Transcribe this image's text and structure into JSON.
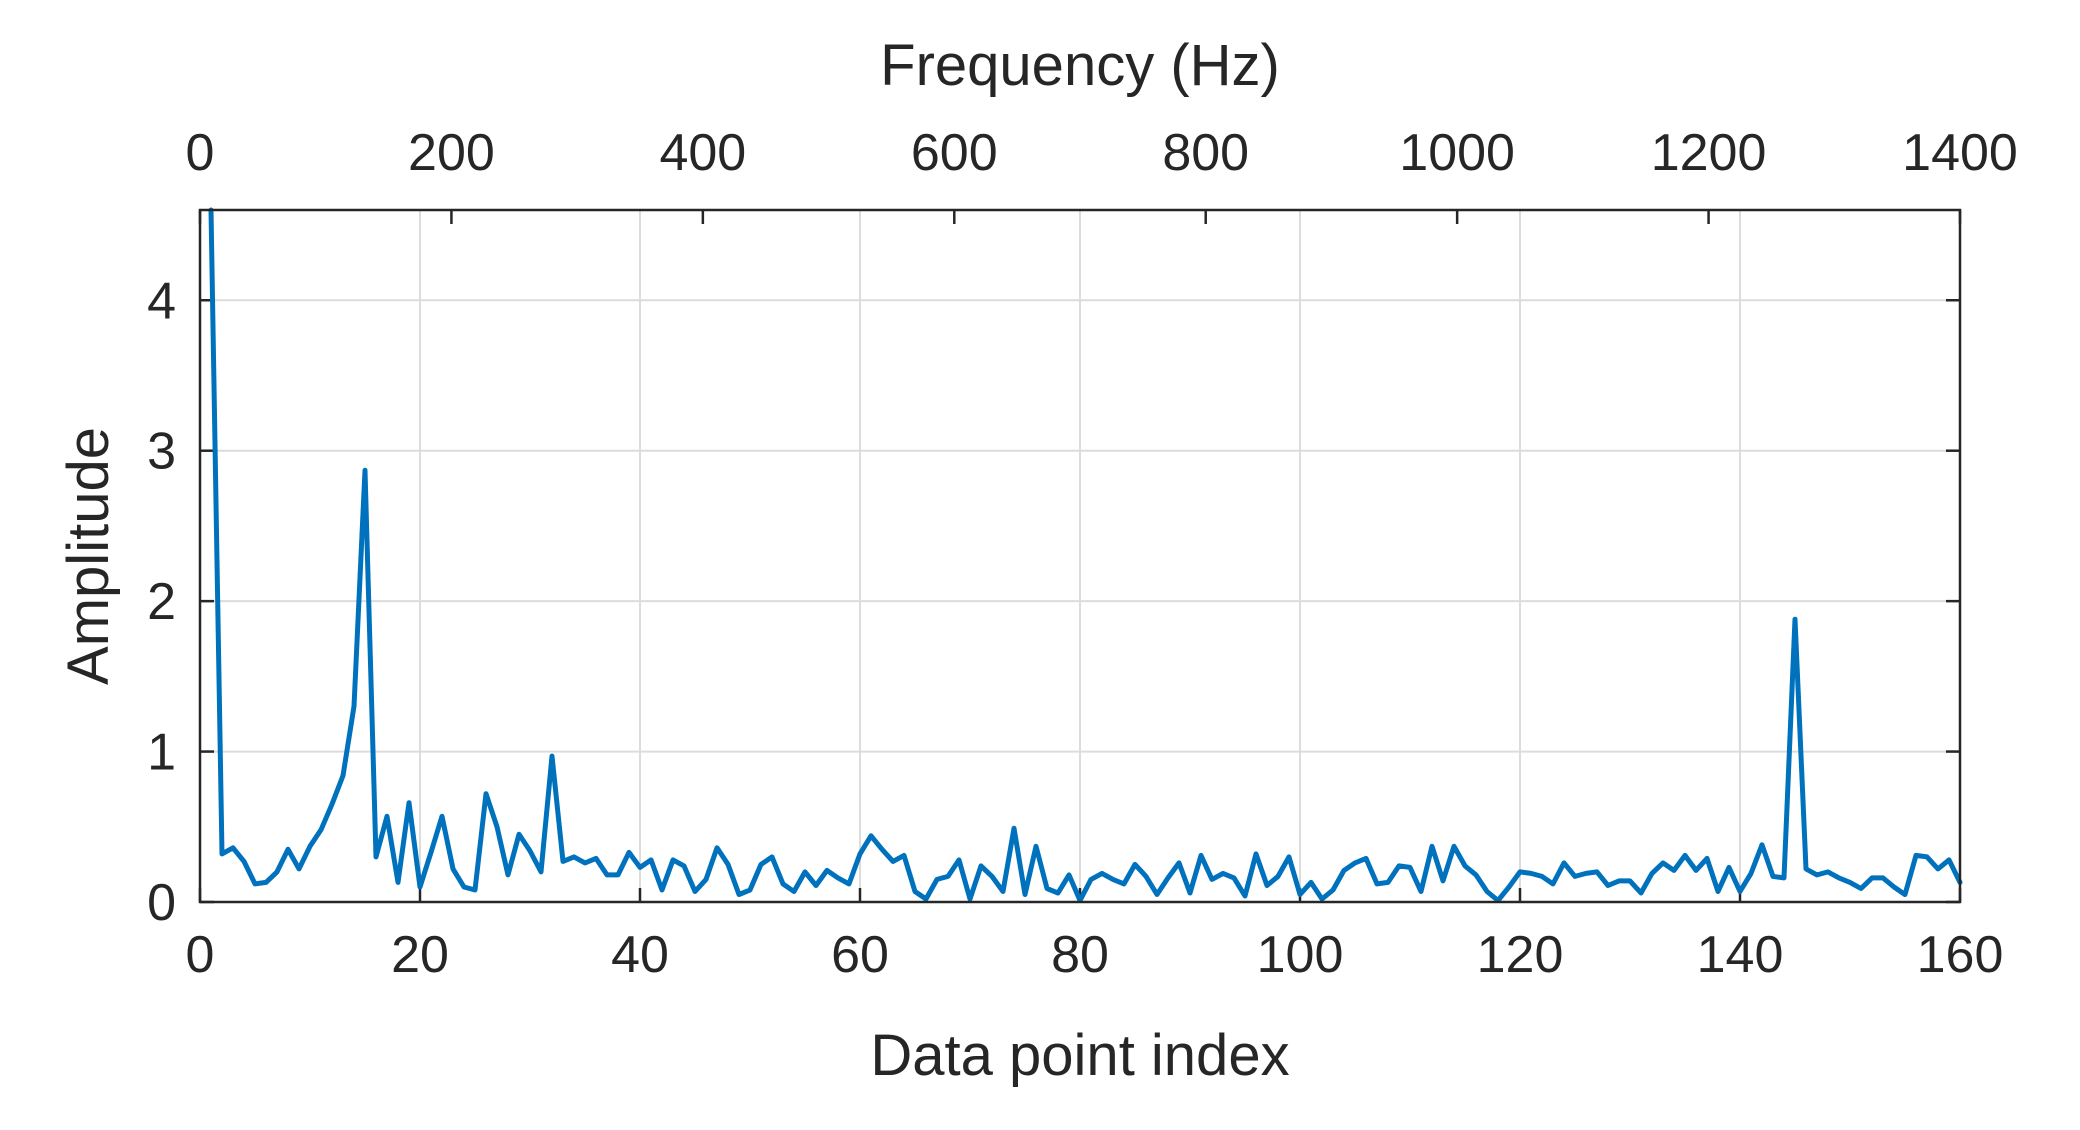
{
  "chart_data": {
    "type": "line",
    "xlabel": "Data point index",
    "x2label": "Frequency (Hz)",
    "ylabel": "Amplitude",
    "xlim": [
      0,
      160
    ],
    "x2lim": [
      0,
      1400
    ],
    "ylim": [
      0,
      4.6
    ],
    "xticks": [
      0,
      20,
      40,
      60,
      80,
      100,
      120,
      140,
      160
    ],
    "x2ticks": [
      0,
      200,
      400,
      600,
      800,
      1000,
      1200,
      1400
    ],
    "yticks": [
      0,
      1,
      2,
      3,
      4
    ],
    "grid": true,
    "line_color": "#0072BD",
    "series": [
      {
        "x": [
          1,
          2,
          3,
          4,
          5,
          6,
          7,
          8,
          9,
          10,
          11,
          12,
          13,
          14,
          15,
          16,
          17,
          18,
          19,
          20,
          21,
          22,
          23,
          24,
          25,
          26,
          27,
          28,
          29,
          30,
          31,
          32,
          33,
          34,
          35,
          36,
          37,
          38,
          39,
          40,
          41,
          42,
          43,
          44,
          45,
          46,
          47,
          48,
          49,
          50,
          51,
          52,
          53,
          54,
          55,
          56,
          57,
          58,
          59,
          60,
          61,
          62,
          63,
          64,
          65,
          66,
          67,
          68,
          69,
          70,
          71,
          72,
          73,
          74,
          75,
          76,
          77,
          78,
          79,
          80,
          81,
          82,
          83,
          84,
          85,
          86,
          87,
          88,
          89,
          90,
          91,
          92,
          93,
          94,
          95,
          96,
          97,
          98,
          99,
          100,
          101,
          102,
          103,
          104,
          105,
          106,
          107,
          108,
          109,
          110,
          111,
          112,
          113,
          114,
          115,
          116,
          117,
          118,
          119,
          120,
          121,
          122,
          123,
          124,
          125,
          126,
          127,
          128,
          129,
          130,
          131,
          132,
          133,
          134,
          135,
          136,
          137,
          138,
          139,
          140,
          141,
          142,
          143,
          144,
          145,
          146,
          147,
          148,
          149,
          150,
          151,
          152,
          153,
          154,
          155,
          156,
          157,
          158,
          159,
          160
        ],
        "y": [
          4.6,
          0.32,
          0.36,
          0.27,
          0.12,
          0.13,
          0.2,
          0.35,
          0.22,
          0.37,
          0.48,
          0.65,
          0.84,
          1.3,
          2.87,
          0.3,
          0.57,
          0.13,
          0.66,
          0.1,
          0.33,
          0.57,
          0.22,
          0.1,
          0.08,
          0.72,
          0.5,
          0.18,
          0.45,
          0.34,
          0.2,
          0.97,
          0.27,
          0.3,
          0.26,
          0.29,
          0.18,
          0.18,
          0.33,
          0.23,
          0.28,
          0.08,
          0.28,
          0.24,
          0.07,
          0.15,
          0.36,
          0.25,
          0.05,
          0.08,
          0.25,
          0.3,
          0.12,
          0.07,
          0.2,
          0.11,
          0.21,
          0.16,
          0.12,
          0.32,
          0.44,
          0.35,
          0.27,
          0.31,
          0.07,
          0.02,
          0.15,
          0.17,
          0.28,
          0.02,
          0.24,
          0.17,
          0.07,
          0.49,
          0.05,
          0.37,
          0.09,
          0.06,
          0.18,
          0.01,
          0.15,
          0.19,
          0.15,
          0.12,
          0.25,
          0.17,
          0.05,
          0.16,
          0.26,
          0.06,
          0.31,
          0.15,
          0.19,
          0.16,
          0.04,
          0.32,
          0.11,
          0.17,
          0.3,
          0.05,
          0.13,
          0.02,
          0.08,
          0.21,
          0.26,
          0.29,
          0.12,
          0.13,
          0.24,
          0.23,
          0.07,
          0.37,
          0.14,
          0.37,
          0.24,
          0.18,
          0.07,
          0.01,
          0.1,
          0.2,
          0.19,
          0.17,
          0.12,
          0.26,
          0.17,
          0.19,
          0.2,
          0.11,
          0.14,
          0.14,
          0.06,
          0.19,
          0.26,
          0.21,
          0.31,
          0.21,
          0.29,
          0.07,
          0.23,
          0.07,
          0.19,
          0.38,
          0.17,
          0.16,
          1.88,
          0.22,
          0.18,
          0.2,
          0.16,
          0.13,
          0.09,
          0.16,
          0.16,
          0.1,
          0.05,
          0.31,
          0.3,
          0.22,
          0.28,
          0.13
        ]
      }
    ]
  }
}
